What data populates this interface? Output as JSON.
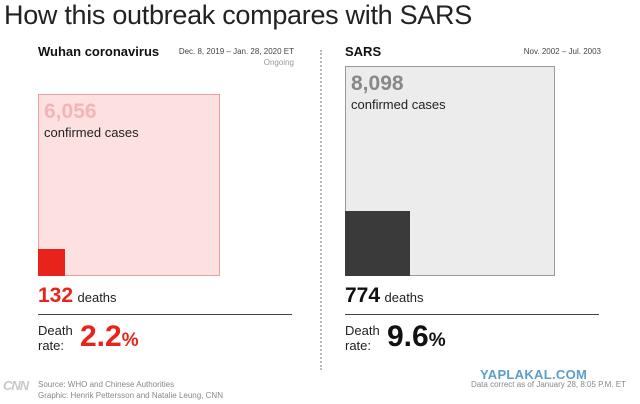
{
  "title": "How this outbreak compares with SARS",
  "chart_data": [
    {
      "type": "area",
      "outbreak": "Wuhan coronavirus",
      "date_range": "Dec. 8, 2019 – Jan. 28, 2020 ET",
      "status": "Ongoing",
      "confirmed_cases": 6056,
      "cases_text": "6,056",
      "cases_label": "confirmed cases",
      "deaths": 132,
      "deaths_text": "132",
      "deaths_label": "deaths",
      "death_rate_label": "Death rate:",
      "death_rate": 2.2,
      "death_rate_text": "2.2",
      "percent_sign": "%",
      "colors": {
        "fill": "#fde0e0",
        "border": "#e6a0a0",
        "deaths": "#e8231b",
        "number": "#f4b5b5",
        "accent": "#e8231b"
      }
    },
    {
      "type": "area",
      "outbreak": "SARS",
      "date_range": "Nov. 2002 – Jul. 2003",
      "status": "",
      "confirmed_cases": 8098,
      "cases_text": "8,098",
      "cases_label": "confirmed cases",
      "deaths": 774,
      "deaths_text": "774",
      "deaths_label": "deaths",
      "death_rate_label": "Death rate:",
      "death_rate": 9.6,
      "death_rate_text": "9.6",
      "percent_sign": "%",
      "colors": {
        "fill": "#ececec",
        "border": "#9a9a9a",
        "deaths": "#3a3a3a",
        "number": "#888888",
        "accent": "#111111"
      }
    }
  ],
  "footer": {
    "logo": "CNN",
    "source": "Source: WHO and Chinese Authorities",
    "graphic": "Graphic: Henrik Pettersson and Natalie Leung, CNN",
    "note": "Data correct as of January 28, 8:05 P.M. ET",
    "watermark": "YAPLAKAL.COM"
  }
}
